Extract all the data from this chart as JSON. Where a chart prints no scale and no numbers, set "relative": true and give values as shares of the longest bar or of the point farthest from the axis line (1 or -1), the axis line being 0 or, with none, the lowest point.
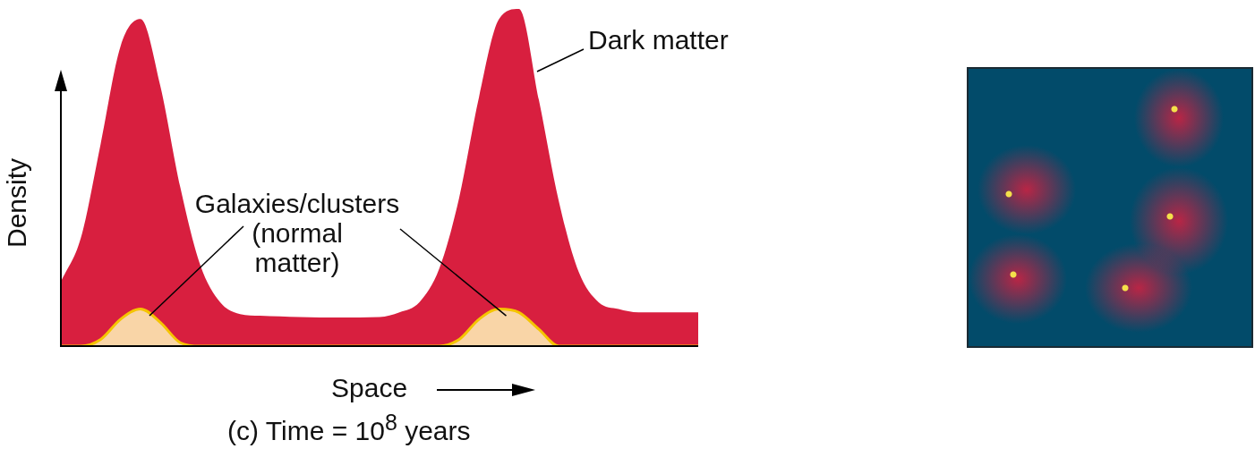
{
  "chart_data": {
    "type": "area",
    "relative": true,
    "title": "(c) Time = 10$^{8}$ years",
    "xlabel": "Space",
    "ylabel": "Density",
    "legend": false,
    "categories": [
      null,
      null,
      null,
      null,
      null,
      null,
      null,
      null,
      null,
      null,
      null,
      null,
      null,
      null,
      null,
      null,
      null,
      null,
      null,
      null,
      null,
      null,
      null,
      null,
      null,
      null,
      null,
      null,
      null,
      null,
      null,
      null,
      null
    ],
    "series": [
      {
        "name": "Dark matter",
        "color": "#d81f3f",
        "values": [
          0.19,
          0.32,
          0.6,
          0.89,
          0.97,
          0.77,
          0.47,
          0.24,
          0.13,
          0.095,
          0.09,
          0.088,
          0.086,
          0.085,
          0.085,
          0.085,
          0.086,
          0.1,
          0.13,
          0.23,
          0.44,
          0.74,
          0.97,
          1.0,
          0.73,
          0.43,
          0.22,
          0.13,
          0.11,
          0.1,
          0.1,
          0.1,
          0.1
        ]
      },
      {
        "name": "Galaxies/clusters (normal matter)",
        "color": "#f9d5a7",
        "values": [
          0,
          0,
          0.02,
          0.08,
          0.11,
          0.07,
          0.01,
          0,
          0,
          0,
          0,
          0,
          0,
          0,
          0,
          0,
          0,
          0,
          0,
          0,
          0.02,
          0.08,
          0.11,
          0.1,
          0.05,
          0,
          0,
          0,
          0,
          0,
          0,
          0,
          0
        ]
      }
    ]
  }
}
